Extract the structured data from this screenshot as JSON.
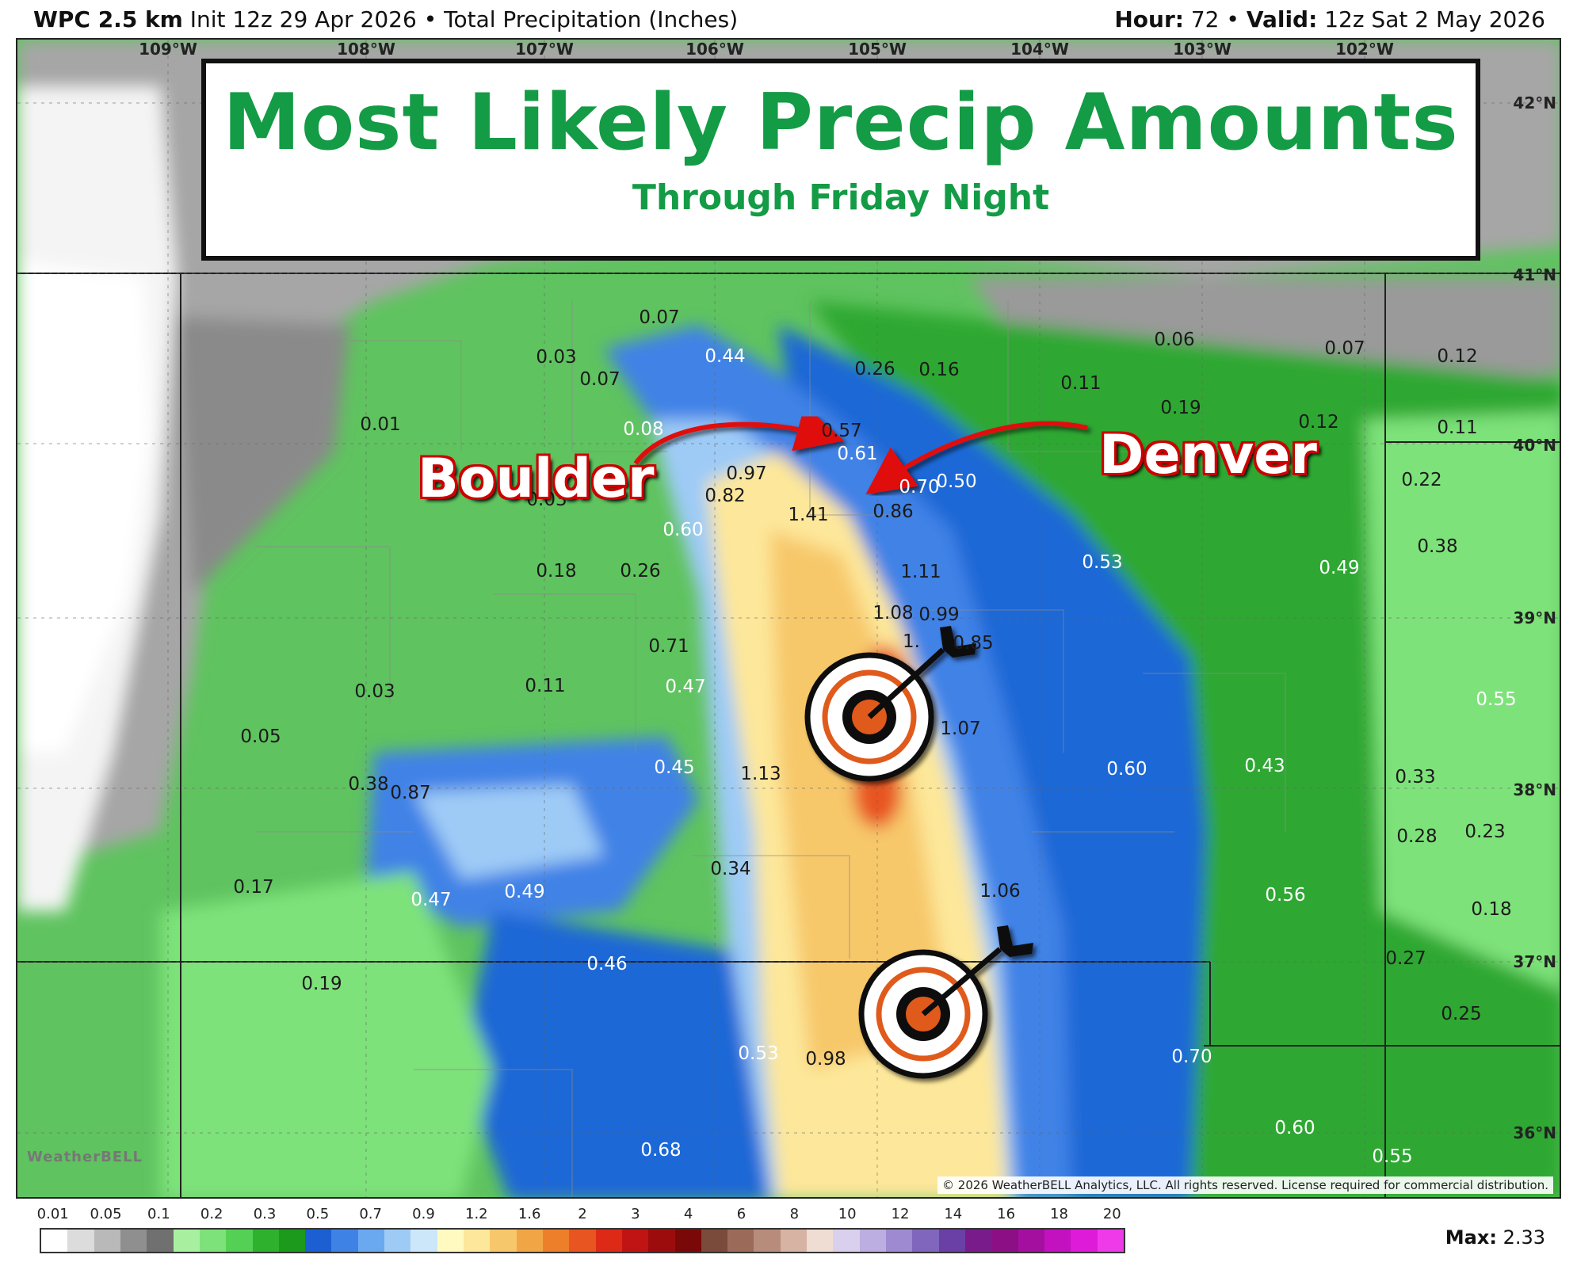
{
  "header": {
    "model": "WPC 2.5 km",
    "init": "Init 12z 29 Apr 2026",
    "bullet": "•",
    "field": "Total Precipitation (Inches)",
    "hour_label": "Hour:",
    "hour_value": "72",
    "valid_label": "Valid:",
    "valid_value": "12z Sat 2 May 2026"
  },
  "title": {
    "main": "Most Likely Precip Amounts",
    "sub": "Through Friday Night"
  },
  "cities": {
    "boulder": "Boulder",
    "denver": "Denver"
  },
  "longitudes": [
    "109°W",
    "108°W",
    "107°W",
    "106°W",
    "105°W",
    "104°W",
    "103°W",
    "102°W"
  ],
  "latitudes": [
    "42°N",
    "41°N",
    "40°N",
    "39°N",
    "38°N",
    "37°N",
    "36°N"
  ],
  "map_values": [
    "0.07",
    "0.03",
    "0.07",
    "0.44",
    "0.26",
    "0.16",
    "0.06",
    "0.07",
    "0.12",
    "0.11",
    "0.19",
    "0.12",
    "0.11",
    "0.01",
    "0.08",
    "0.57",
    "0.61",
    "0.70",
    "0.50",
    "0.97",
    "0.82",
    "0.03",
    "1.41",
    "0.86",
    "0.22",
    "0.60",
    "0.18",
    "0.26",
    "1.11",
    "0.53",
    "0.49",
    "0.38",
    "1.08",
    "0.99",
    "0.85",
    "0.71",
    "1.",
    "0.47",
    "0.11",
    "0.03",
    "1.07",
    "0.55",
    "0.05",
    "0.45",
    "1.13",
    "0.60",
    "0.43",
    "0.33",
    "0.38",
    "0.87",
    "0.28",
    "0.23",
    "0.34",
    "0.17",
    "0.47",
    "0.49",
    "1.06",
    "0.56",
    "0.18",
    "0.27",
    "0.46",
    "0.19",
    "0.25",
    "0.53",
    "0.98",
    "0.70",
    "0.60",
    "0.68",
    "0.55"
  ],
  "copyright": "© 2026 WeatherBELL Analytics, LLC. All rights reserved. License required for commercial distribution.",
  "logo": "WeatherBELL",
  "legend": {
    "ticks": [
      "0.01",
      "0.05",
      "0.1",
      "0.2",
      "0.3",
      "0.5",
      "0.7",
      "0.9",
      "1.2",
      "1.6",
      "2",
      "3",
      "4",
      "6",
      "8",
      "10",
      "12",
      "14",
      "16",
      "18",
      "20"
    ],
    "colors": [
      "#ffffff",
      "#dcdcdc",
      "#b9b9b9",
      "#8f8f8f",
      "#707070",
      "#a8f0a0",
      "#7ee27a",
      "#54d154",
      "#2eb22e",
      "#1b9a1b",
      "#1b5fd2",
      "#3f82e6",
      "#6aa8f0",
      "#9ecbf6",
      "#cde7fa",
      "#fffac0",
      "#fde79a",
      "#f7c86b",
      "#f2a544",
      "#ee7f2a",
      "#e85520",
      "#dd2a17",
      "#c01313",
      "#9c0c0c",
      "#7a0808",
      "#7a4a3a",
      "#9c6a58",
      "#b88c7a",
      "#d6b3a2",
      "#efdcd2",
      "#d8d0ec",
      "#bcaee0",
      "#9e8ad0",
      "#8066bc",
      "#6a3fa6",
      "#7a1b8c",
      "#8c0f86",
      "#a40fa0",
      "#c311bf",
      "#dd1bd8",
      "#ee3ae8"
    ],
    "max_label": "Max:",
    "max_value": "2.33"
  }
}
